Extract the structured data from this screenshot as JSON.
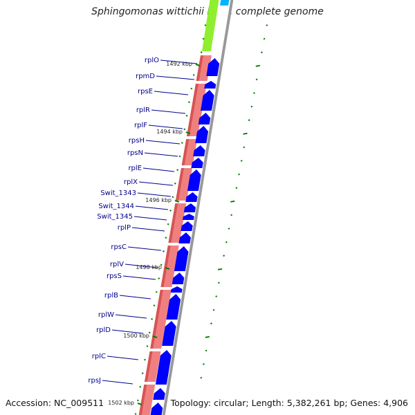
{
  "title": "Sphingomonas wittichii RW1, complete genome",
  "accession": "Accession: NC_009511",
  "summary": "Topology: circular; Length: 5,382,261 bp; Genes: 4,906",
  "colors": {
    "gene_label": "#00008b",
    "cds": "#0000ff",
    "rna_track": "#f08080",
    "feature_green": "#90ee30",
    "feature_cyan": "#00b4ff",
    "tick": "#008000",
    "backbone": "#999999"
  },
  "scale_labels": [
    "1492 kbp",
    "1494 kbp",
    "1496 kbp",
    "1498 kbp",
    "1500 kbp",
    "1502 kbp"
  ],
  "genes": [
    "rplO",
    "rpmD",
    "rpsE",
    "rplR",
    "rplF",
    "rpsH",
    "rpsN",
    "rplE",
    "rplX",
    "Swit_1343",
    "Swit_1344",
    "Swit_1345",
    "rplP",
    "rpsC",
    "rplV",
    "rpsS",
    "rplB",
    "rplW",
    "rplD",
    "rplC",
    "rpsJ"
  ]
}
